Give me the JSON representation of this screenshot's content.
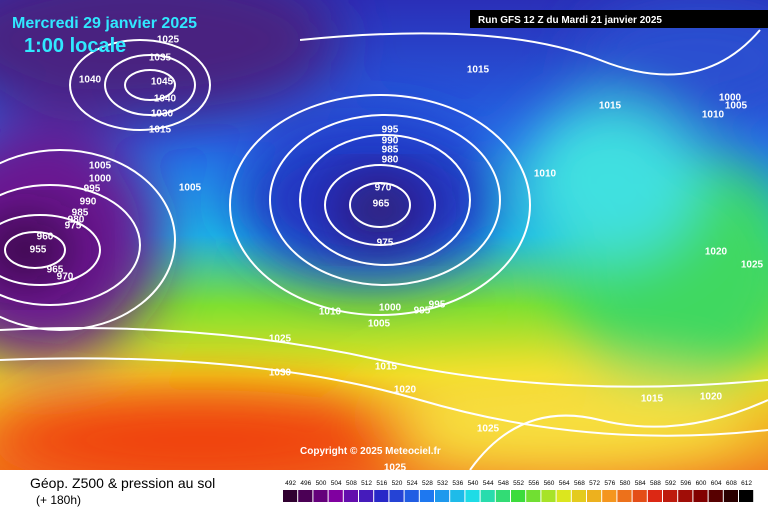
{
  "header": {
    "date": "Mercredi 29 janvier 2025",
    "time": "1:00 locale",
    "run": "Run GFS 12 Z du Mardi 21 janvier 2025"
  },
  "copyright": "Copyright © 2025 Meteociel.fr",
  "legend": {
    "title": "Géop. Z500 & pression au sol",
    "lead": "(+ 180h)"
  },
  "colorbar": {
    "ticks": [
      492,
      496,
      500,
      504,
      508,
      512,
      516,
      520,
      524,
      528,
      532,
      536,
      540,
      544,
      548,
      552,
      556,
      560,
      564,
      568,
      572,
      576,
      580,
      584,
      588,
      592,
      596,
      600,
      604,
      608,
      612
    ]
  },
  "isobar_labels": [
    "1025",
    "1035",
    "1040",
    "1045",
    "1040",
    "1030",
    "1015",
    "1005",
    "1000",
    "995",
    "990",
    "985",
    "980",
    "975",
    "960",
    "955",
    "965",
    "970",
    "1005",
    "995",
    "990",
    "985",
    "980",
    "970",
    "965",
    "975",
    "1015",
    "1015",
    "1000",
    "1005",
    "1010",
    "1010",
    "1020",
    "1025",
    "1010",
    "1000",
    "995",
    "995",
    "1005",
    "1025",
    "1030",
    "1015",
    "1020",
    "1015",
    "1020",
    "1025",
    "1025"
  ]
}
